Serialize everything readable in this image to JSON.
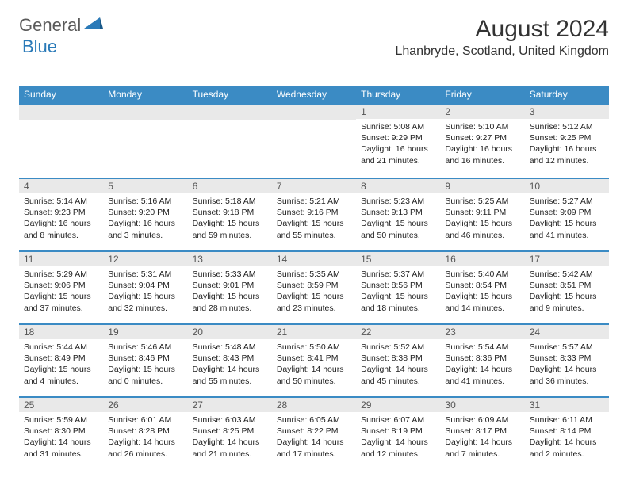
{
  "logo": {
    "text1": "General",
    "text2": "Blue"
  },
  "title": "August 2024",
  "location": "Lhanbryde, Scotland, United Kingdom",
  "colors": {
    "header_bg": "#3b8bc4",
    "header_text": "#ffffff",
    "daynum_bg": "#e9e9e9",
    "border": "#3b8bc4",
    "logo_gray": "#5a5a5a",
    "logo_blue": "#2a7ab8"
  },
  "fonts": {
    "title_size": 30,
    "location_size": 16,
    "header_size": 12,
    "cell_size": 10.5
  },
  "day_headers": [
    "Sunday",
    "Monday",
    "Tuesday",
    "Wednesday",
    "Thursday",
    "Friday",
    "Saturday"
  ],
  "weeks": [
    [
      null,
      null,
      null,
      null,
      {
        "n": "1",
        "sr": "5:08 AM",
        "ss": "9:29 PM",
        "dl": "16 hours and 21 minutes."
      },
      {
        "n": "2",
        "sr": "5:10 AM",
        "ss": "9:27 PM",
        "dl": "16 hours and 16 minutes."
      },
      {
        "n": "3",
        "sr": "5:12 AM",
        "ss": "9:25 PM",
        "dl": "16 hours and 12 minutes."
      }
    ],
    [
      {
        "n": "4",
        "sr": "5:14 AM",
        "ss": "9:23 PM",
        "dl": "16 hours and 8 minutes."
      },
      {
        "n": "5",
        "sr": "5:16 AM",
        "ss": "9:20 PM",
        "dl": "16 hours and 3 minutes."
      },
      {
        "n": "6",
        "sr": "5:18 AM",
        "ss": "9:18 PM",
        "dl": "15 hours and 59 minutes."
      },
      {
        "n": "7",
        "sr": "5:21 AM",
        "ss": "9:16 PM",
        "dl": "15 hours and 55 minutes."
      },
      {
        "n": "8",
        "sr": "5:23 AM",
        "ss": "9:13 PM",
        "dl": "15 hours and 50 minutes."
      },
      {
        "n": "9",
        "sr": "5:25 AM",
        "ss": "9:11 PM",
        "dl": "15 hours and 46 minutes."
      },
      {
        "n": "10",
        "sr": "5:27 AM",
        "ss": "9:09 PM",
        "dl": "15 hours and 41 minutes."
      }
    ],
    [
      {
        "n": "11",
        "sr": "5:29 AM",
        "ss": "9:06 PM",
        "dl": "15 hours and 37 minutes."
      },
      {
        "n": "12",
        "sr": "5:31 AM",
        "ss": "9:04 PM",
        "dl": "15 hours and 32 minutes."
      },
      {
        "n": "13",
        "sr": "5:33 AM",
        "ss": "9:01 PM",
        "dl": "15 hours and 28 minutes."
      },
      {
        "n": "14",
        "sr": "5:35 AM",
        "ss": "8:59 PM",
        "dl": "15 hours and 23 minutes."
      },
      {
        "n": "15",
        "sr": "5:37 AM",
        "ss": "8:56 PM",
        "dl": "15 hours and 18 minutes."
      },
      {
        "n": "16",
        "sr": "5:40 AM",
        "ss": "8:54 PM",
        "dl": "15 hours and 14 minutes."
      },
      {
        "n": "17",
        "sr": "5:42 AM",
        "ss": "8:51 PM",
        "dl": "15 hours and 9 minutes."
      }
    ],
    [
      {
        "n": "18",
        "sr": "5:44 AM",
        "ss": "8:49 PM",
        "dl": "15 hours and 4 minutes."
      },
      {
        "n": "19",
        "sr": "5:46 AM",
        "ss": "8:46 PM",
        "dl": "15 hours and 0 minutes."
      },
      {
        "n": "20",
        "sr": "5:48 AM",
        "ss": "8:43 PM",
        "dl": "14 hours and 55 minutes."
      },
      {
        "n": "21",
        "sr": "5:50 AM",
        "ss": "8:41 PM",
        "dl": "14 hours and 50 minutes."
      },
      {
        "n": "22",
        "sr": "5:52 AM",
        "ss": "8:38 PM",
        "dl": "14 hours and 45 minutes."
      },
      {
        "n": "23",
        "sr": "5:54 AM",
        "ss": "8:36 PM",
        "dl": "14 hours and 41 minutes."
      },
      {
        "n": "24",
        "sr": "5:57 AM",
        "ss": "8:33 PM",
        "dl": "14 hours and 36 minutes."
      }
    ],
    [
      {
        "n": "25",
        "sr": "5:59 AM",
        "ss": "8:30 PM",
        "dl": "14 hours and 31 minutes."
      },
      {
        "n": "26",
        "sr": "6:01 AM",
        "ss": "8:28 PM",
        "dl": "14 hours and 26 minutes."
      },
      {
        "n": "27",
        "sr": "6:03 AM",
        "ss": "8:25 PM",
        "dl": "14 hours and 21 minutes."
      },
      {
        "n": "28",
        "sr": "6:05 AM",
        "ss": "8:22 PM",
        "dl": "14 hours and 17 minutes."
      },
      {
        "n": "29",
        "sr": "6:07 AM",
        "ss": "8:19 PM",
        "dl": "14 hours and 12 minutes."
      },
      {
        "n": "30",
        "sr": "6:09 AM",
        "ss": "8:17 PM",
        "dl": "14 hours and 7 minutes."
      },
      {
        "n": "31",
        "sr": "6:11 AM",
        "ss": "8:14 PM",
        "dl": "14 hours and 2 minutes."
      }
    ]
  ],
  "labels": {
    "sunrise": "Sunrise: ",
    "sunset": "Sunset: ",
    "daylight": "Daylight: "
  }
}
